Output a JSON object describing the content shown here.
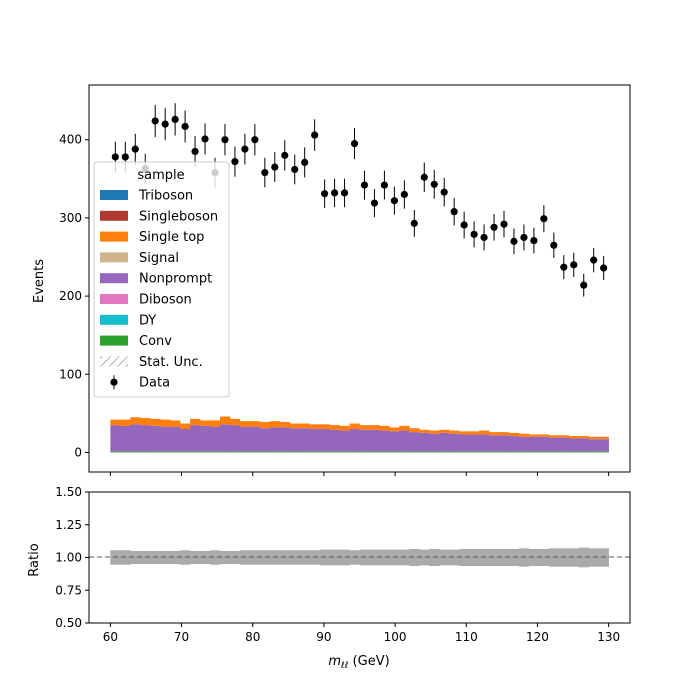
{
  "chart_data": {
    "type": "bar",
    "xlabel_main": "m",
    "xlabel_sub": "ℓℓ",
    "xlabel_unit": " (GeV)",
    "ylabel_top": "Events",
    "ylabel_bottom": "Ratio",
    "xlim": [
      57,
      133
    ],
    "ylim_top": [
      -25,
      470
    ],
    "ylim_bottom": [
      0.5,
      1.5
    ],
    "x_ticks": [
      "60",
      "70",
      "80",
      "90",
      "100",
      "110",
      "120",
      "130"
    ],
    "y_ticks_top": [
      "0",
      "100",
      "200",
      "300",
      "400"
    ],
    "y_ticks_bottom": [
      "0.50",
      "0.75",
      "1.00",
      "1.25",
      "1.50"
    ],
    "bin_edges": [
      60,
      130
    ],
    "bin_count": 50,
    "data_points": [
      378,
      378,
      388,
      363,
      424,
      420,
      426,
      417,
      385,
      401,
      358,
      400,
      372,
      388,
      400,
      358,
      365,
      380,
      362,
      371,
      406,
      331,
      332,
      332,
      395,
      342,
      319,
      342,
      322,
      330,
      293,
      352,
      343,
      333,
      308,
      291,
      279,
      275,
      288,
      292,
      270,
      275,
      271,
      299,
      265,
      237,
      240,
      214,
      246,
      236
    ],
    "stack_series": [
      {
        "name": "Conv",
        "color": "#2ca02c",
        "values": [
          1,
          1,
          1,
          1,
          1,
          1,
          1,
          1,
          1,
          1,
          1,
          1,
          1,
          1,
          1,
          1,
          1,
          1,
          1,
          1,
          1,
          1,
          1,
          1,
          1,
          1,
          1,
          1,
          1,
          1,
          1,
          1,
          1,
          1,
          1,
          1,
          1,
          1,
          1,
          1,
          1,
          1,
          1,
          1,
          1,
          1,
          1,
          1,
          1,
          1
        ]
      },
      {
        "name": "Nonprompt",
        "color": "#9467bd",
        "values": [
          34,
          33,
          35,
          34,
          33,
          32,
          32,
          29,
          34,
          33,
          32,
          35,
          34,
          32,
          32,
          30,
          31,
          31,
          30,
          30,
          29,
          29,
          28,
          27,
          29,
          28,
          28,
          27,
          26,
          27,
          25,
          24,
          23,
          24,
          23,
          22,
          22,
          22,
          21,
          21,
          20,
          19,
          19,
          19,
          18,
          18,
          17,
          17,
          16,
          16
        ]
      },
      {
        "name": "Single top",
        "color": "#ff7f0e",
        "values": [
          7,
          8,
          9,
          9,
          9,
          9,
          8,
          7,
          8,
          7,
          8,
          10,
          8,
          7,
          7,
          8,
          8,
          7,
          6,
          6,
          6,
          6,
          6,
          6,
          7,
          6,
          6,
          6,
          5,
          6,
          5,
          4,
          4,
          4,
          4,
          4,
          4,
          5,
          4,
          4,
          4,
          4,
          3,
          3,
          3,
          3,
          3,
          3,
          3,
          3
        ]
      }
    ],
    "ratio_unc_half": [
      0.055,
      0.055,
      0.05,
      0.05,
      0.05,
      0.05,
      0.05,
      0.055,
      0.05,
      0.05,
      0.055,
      0.05,
      0.05,
      0.055,
      0.055,
      0.055,
      0.055,
      0.055,
      0.055,
      0.055,
      0.055,
      0.06,
      0.06,
      0.06,
      0.055,
      0.06,
      0.06,
      0.06,
      0.06,
      0.06,
      0.065,
      0.06,
      0.065,
      0.06,
      0.06,
      0.065,
      0.065,
      0.065,
      0.065,
      0.065,
      0.065,
      0.07,
      0.065,
      0.065,
      0.07,
      0.07,
      0.07,
      0.075,
      0.07,
      0.07
    ],
    "legend": {
      "title": "sample",
      "placement": "center-left",
      "entries": [
        {
          "label": "Triboson",
          "color": "#1f77b4",
          "kind": "patch"
        },
        {
          "label": "Singleboson",
          "color": "#b03a32",
          "kind": "patch"
        },
        {
          "label": "Single top",
          "color": "#ff7f0e",
          "kind": "patch"
        },
        {
          "label": "Signal",
          "color": "#d2b48c",
          "kind": "patch"
        },
        {
          "label": "Nonprompt",
          "color": "#9467bd",
          "kind": "patch"
        },
        {
          "label": "Diboson",
          "color": "#e377c2",
          "kind": "patch"
        },
        {
          "label": "DY",
          "color": "#17becf",
          "kind": "patch"
        },
        {
          "label": "Conv",
          "color": "#2ca02c",
          "kind": "patch"
        },
        {
          "label": "Stat. Unc.",
          "color": "#888888",
          "kind": "hatch"
        },
        {
          "label": "Data",
          "color": "#000000",
          "kind": "marker"
        }
      ]
    }
  }
}
